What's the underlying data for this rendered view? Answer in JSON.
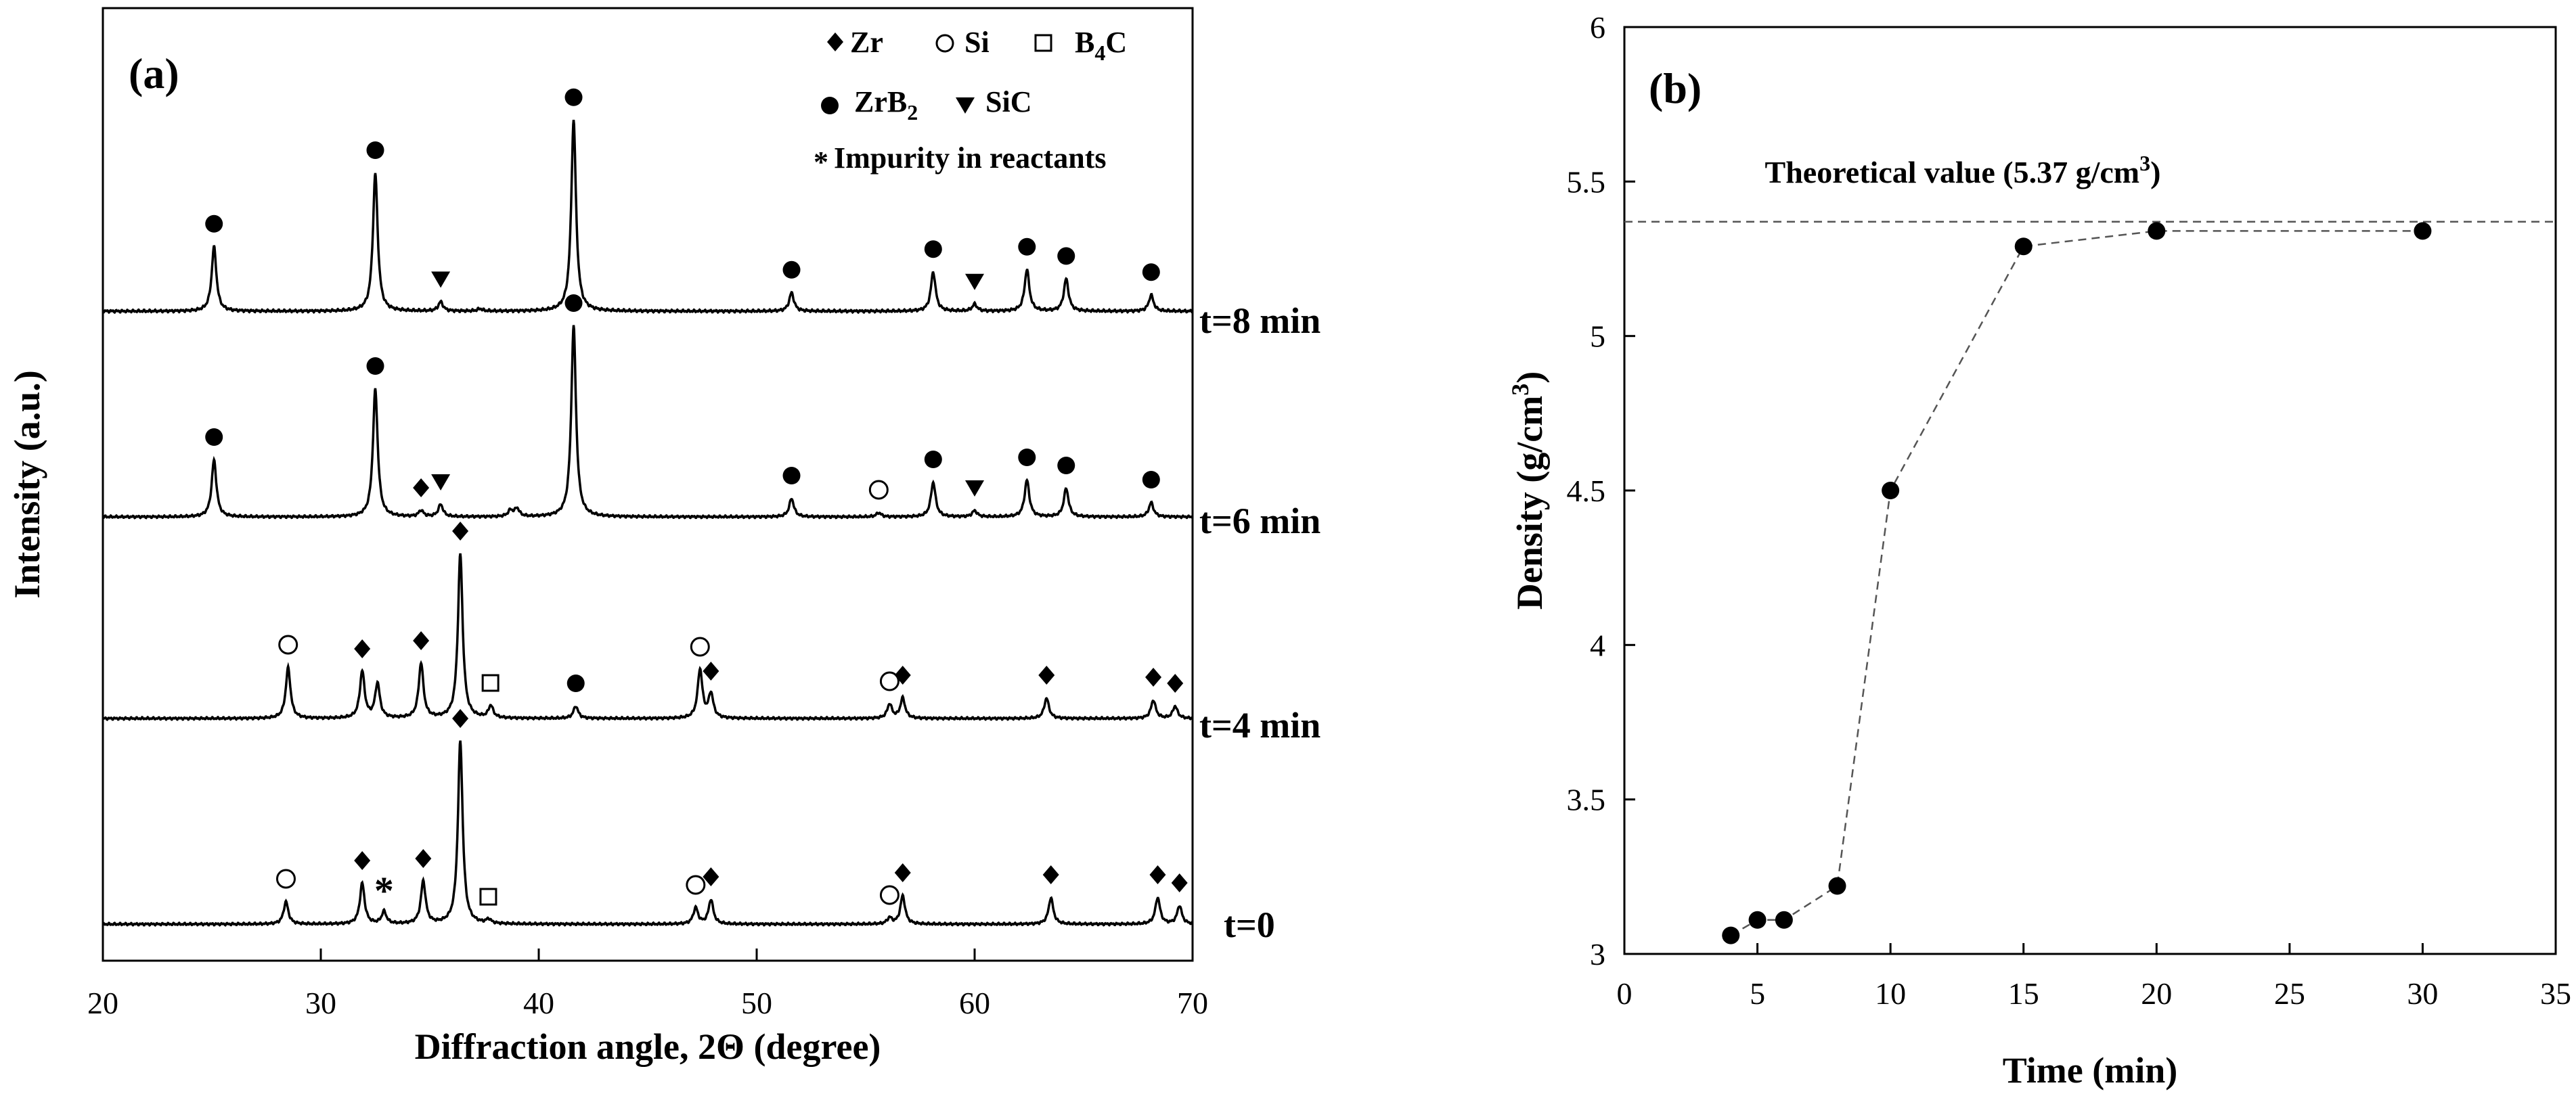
{
  "chart_data": [
    {
      "type": "line",
      "panel_label": "(a)",
      "title": "",
      "xlabel_prefix": "Diffraction angle, 2",
      "xlabel_symbol": "Θ",
      "xlabel_suffix": " (degree)",
      "ylabel": "Intensity (a.u.)",
      "xlim": [
        20,
        70
      ],
      "xticks": [
        "20",
        "30",
        "40",
        "50",
        "60",
        "70"
      ],
      "legend": [
        {
          "symbol": "diamond",
          "label": "Zr"
        },
        {
          "symbol": "open-circle",
          "label": "Si"
        },
        {
          "symbol": "open-square",
          "label": "B",
          "sub": "4",
          "suffix": "C"
        },
        {
          "symbol": "filled-circle",
          "label": "ZrB",
          "sub": "2"
        },
        {
          "symbol": "down-triangle",
          "label": "SiC"
        },
        {
          "symbol": "asterisk",
          "label": "Impurity in reactants"
        }
      ],
      "series": [
        {
          "name": "t=8 min",
          "offset": 3,
          "peaks": [
            [
              25.1,
              0.28
            ],
            [
              32.5,
              0.6
            ],
            [
              35.5,
              0.04
            ],
            [
              37.3,
              0.01
            ],
            [
              41.6,
              0.83
            ],
            [
              51.6,
              0.08
            ],
            [
              58.1,
              0.17
            ],
            [
              60.0,
              0.03
            ],
            [
              62.4,
              0.18
            ],
            [
              64.2,
              0.14
            ],
            [
              68.1,
              0.07
            ]
          ],
          "markers": [
            {
              "type": "filled-circle",
              "x": 25.1
            },
            {
              "type": "filled-circle",
              "x": 32.5
            },
            {
              "type": "down-triangle",
              "x": 35.5
            },
            {
              "type": "filled-circle",
              "x": 41.6
            },
            {
              "type": "filled-circle",
              "x": 51.6
            },
            {
              "type": "filled-circle",
              "x": 58.1
            },
            {
              "type": "down-triangle",
              "x": 60.0
            },
            {
              "type": "filled-circle",
              "x": 62.4
            },
            {
              "type": "filled-circle",
              "x": 64.2
            },
            {
              "type": "filled-circle",
              "x": 68.1
            }
          ]
        },
        {
          "name": "t=6 min",
          "offset": 2,
          "peaks": [
            [
              25.1,
              0.28
            ],
            [
              32.5,
              0.63
            ],
            [
              34.6,
              0.03
            ],
            [
              35.5,
              0.06
            ],
            [
              38.7,
              0.03
            ],
            [
              39.0,
              0.04
            ],
            [
              41.6,
              0.94
            ],
            [
              51.6,
              0.09
            ],
            [
              55.6,
              0.02
            ],
            [
              58.1,
              0.17
            ],
            [
              60.0,
              0.03
            ],
            [
              62.4,
              0.18
            ],
            [
              64.2,
              0.14
            ],
            [
              68.1,
              0.07
            ]
          ],
          "markers": [
            {
              "type": "filled-circle",
              "x": 25.1
            },
            {
              "type": "filled-circle",
              "x": 32.5
            },
            {
              "type": "diamond",
              "x": 34.6
            },
            {
              "type": "down-triangle",
              "x": 35.5
            },
            {
              "type": "filled-circle",
              "x": 41.6
            },
            {
              "type": "filled-circle",
              "x": 51.6
            },
            {
              "type": "open-circle",
              "x": 55.6
            },
            {
              "type": "filled-circle",
              "x": 58.1
            },
            {
              "type": "down-triangle",
              "x": 60.0
            },
            {
              "type": "filled-circle",
              "x": 62.4
            },
            {
              "type": "filled-circle",
              "x": 64.2
            },
            {
              "type": "filled-circle",
              "x": 68.1
            }
          ]
        },
        {
          "name": "t=4 min",
          "offset": 1,
          "peaks": [
            [
              28.5,
              0.25
            ],
            [
              31.9,
              0.23
            ],
            [
              32.6,
              0.17
            ],
            [
              34.6,
              0.27
            ],
            [
              36.4,
              0.81
            ],
            [
              37.8,
              0.06
            ],
            [
              41.7,
              0.06
            ],
            [
              47.4,
              0.24
            ],
            [
              47.9,
              0.12
            ],
            [
              56.1,
              0.07
            ],
            [
              56.7,
              0.1
            ],
            [
              63.3,
              0.1
            ],
            [
              68.2,
              0.09
            ],
            [
              69.2,
              0.06
            ]
          ],
          "markers": [
            {
              "type": "open-circle",
              "x": 28.5
            },
            {
              "type": "diamond",
              "x": 31.9
            },
            {
              "type": "diamond",
              "x": 34.6
            },
            {
              "type": "diamond",
              "x": 36.4
            },
            {
              "type": "open-square",
              "x": 37.8
            },
            {
              "type": "filled-circle",
              "x": 41.7
            },
            {
              "type": "open-circle",
              "x": 47.4
            },
            {
              "type": "diamond",
              "x": 47.9
            },
            {
              "type": "open-circle",
              "x": 56.1
            },
            {
              "type": "diamond",
              "x": 56.7
            },
            {
              "type": "diamond",
              "x": 63.3
            },
            {
              "type": "diamond",
              "x": 68.2
            },
            {
              "type": "diamond",
              "x": 69.2
            }
          ]
        },
        {
          "name": "t=0",
          "offset": 0,
          "peaks": [
            [
              28.4,
              0.11
            ],
            [
              31.9,
              0.2
            ],
            [
              32.9,
              0.06
            ],
            [
              34.7,
              0.21
            ],
            [
              36.4,
              0.9
            ],
            [
              37.7,
              0.02
            ],
            [
              47.2,
              0.08
            ],
            [
              47.9,
              0.12
            ],
            [
              56.1,
              0.03
            ],
            [
              56.7,
              0.14
            ],
            [
              63.5,
              0.13
            ],
            [
              68.4,
              0.13
            ],
            [
              69.4,
              0.09
            ]
          ],
          "markers": [
            {
              "type": "open-circle",
              "x": 28.4
            },
            {
              "type": "diamond",
              "x": 31.9
            },
            {
              "type": "asterisk",
              "x": 32.9
            },
            {
              "type": "diamond",
              "x": 34.7
            },
            {
              "type": "diamond",
              "x": 36.4
            },
            {
              "type": "open-square",
              "x": 37.7
            },
            {
              "type": "open-circle",
              "x": 47.2
            },
            {
              "type": "diamond",
              "x": 47.9
            },
            {
              "type": "open-circle",
              "x": 56.1
            },
            {
              "type": "diamond",
              "x": 56.7
            },
            {
              "type": "diamond",
              "x": 63.5
            },
            {
              "type": "diamond",
              "x": 68.4
            },
            {
              "type": "diamond",
              "x": 69.4
            }
          ]
        }
      ]
    },
    {
      "type": "scatter",
      "panel_label": "(b)",
      "title": "",
      "xlabel": "Time (min)",
      "ylabel_prefix": "Density (g/cm",
      "ylabel_sup": "3",
      "ylabel_suffix": ")",
      "xlim": [
        0,
        35
      ],
      "ylim": [
        3,
        6
      ],
      "xticks": [
        "0",
        "5",
        "10",
        "15",
        "20",
        "25",
        "30",
        "35"
      ],
      "yticks": [
        "3",
        "3.5",
        "4",
        "4.5",
        "5",
        "5.5",
        "6"
      ],
      "x": [
        4,
        5,
        6,
        8,
        10,
        15,
        20,
        30
      ],
      "y": [
        3.06,
        3.11,
        3.11,
        3.22,
        4.5,
        5.29,
        5.34,
        5.34
      ],
      "reference_line": {
        "y": 5.37,
        "label_prefix": "Theoretical value (5.37 g/cm",
        "label_sup": "3",
        "label_suffix": ")"
      }
    }
  ]
}
